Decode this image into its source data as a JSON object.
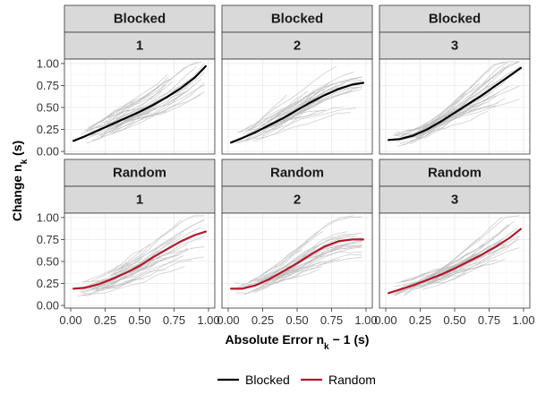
{
  "chart_data": {
    "type": "line",
    "facet_rows_label": "group",
    "xlabel_main": "Absolute Error n",
    "xlabel_sub": "k",
    "xlabel_tail": "− 1 (s)",
    "ylabel_main": "Change n",
    "ylabel_sub": "k",
    "ylabel_tail": " (s)",
    "xlim": [
      0,
      1
    ],
    "ylim": [
      0,
      1.05
    ],
    "x_ticks": [
      "0.00",
      "0.25",
      "0.50",
      "0.75",
      "1.00"
    ],
    "y_ticks": [
      "0.00",
      "0.25",
      "0.50",
      "0.75",
      "1.00"
    ],
    "x_tick_values": [
      0,
      0.25,
      0.5,
      0.75,
      1.0
    ],
    "y_tick_values": [
      0,
      0.25,
      0.5,
      0.75,
      1.0
    ],
    "grid": true,
    "legend_position": "bottom",
    "legend": [
      {
        "name": "Blocked",
        "color": "#000000"
      },
      {
        "name": "Random",
        "color": "#b2182b"
      }
    ],
    "panels": [
      {
        "group": "Blocked",
        "session": "1",
        "color": "#000000",
        "x": [
          0.02,
          0.1,
          0.2,
          0.3,
          0.4,
          0.5,
          0.6,
          0.7,
          0.8,
          0.9,
          0.98
        ],
        "y": [
          0.12,
          0.17,
          0.24,
          0.31,
          0.38,
          0.45,
          0.53,
          0.62,
          0.72,
          0.84,
          0.97
        ]
      },
      {
        "group": "Blocked",
        "session": "2",
        "color": "#000000",
        "x": [
          0.02,
          0.1,
          0.2,
          0.3,
          0.4,
          0.5,
          0.6,
          0.7,
          0.8,
          0.9,
          0.98
        ],
        "y": [
          0.1,
          0.15,
          0.22,
          0.3,
          0.38,
          0.47,
          0.56,
          0.64,
          0.71,
          0.76,
          0.78
        ]
      },
      {
        "group": "Blocked",
        "session": "3",
        "color": "#000000",
        "x": [
          0.02,
          0.1,
          0.2,
          0.3,
          0.4,
          0.5,
          0.6,
          0.7,
          0.8,
          0.9,
          0.98
        ],
        "y": [
          0.13,
          0.14,
          0.18,
          0.25,
          0.34,
          0.44,
          0.54,
          0.64,
          0.75,
          0.86,
          0.95
        ]
      },
      {
        "group": "Random",
        "session": "1",
        "color": "#b2182b",
        "x": [
          0.02,
          0.1,
          0.2,
          0.3,
          0.4,
          0.5,
          0.6,
          0.7,
          0.8,
          0.9,
          0.98
        ],
        "y": [
          0.19,
          0.2,
          0.24,
          0.3,
          0.37,
          0.45,
          0.55,
          0.64,
          0.73,
          0.8,
          0.84
        ]
      },
      {
        "group": "Random",
        "session": "2",
        "color": "#b2182b",
        "x": [
          0.02,
          0.1,
          0.2,
          0.3,
          0.4,
          0.5,
          0.6,
          0.7,
          0.8,
          0.9,
          0.98
        ],
        "y": [
          0.19,
          0.19,
          0.23,
          0.3,
          0.39,
          0.48,
          0.58,
          0.67,
          0.73,
          0.75,
          0.75
        ]
      },
      {
        "group": "Random",
        "session": "3",
        "color": "#b2182b",
        "x": [
          0.02,
          0.1,
          0.2,
          0.3,
          0.4,
          0.5,
          0.6,
          0.7,
          0.8,
          0.9,
          0.98
        ],
        "y": [
          0.14,
          0.18,
          0.23,
          0.29,
          0.35,
          0.42,
          0.5,
          0.58,
          0.67,
          0.77,
          0.87
        ]
      }
    ]
  }
}
